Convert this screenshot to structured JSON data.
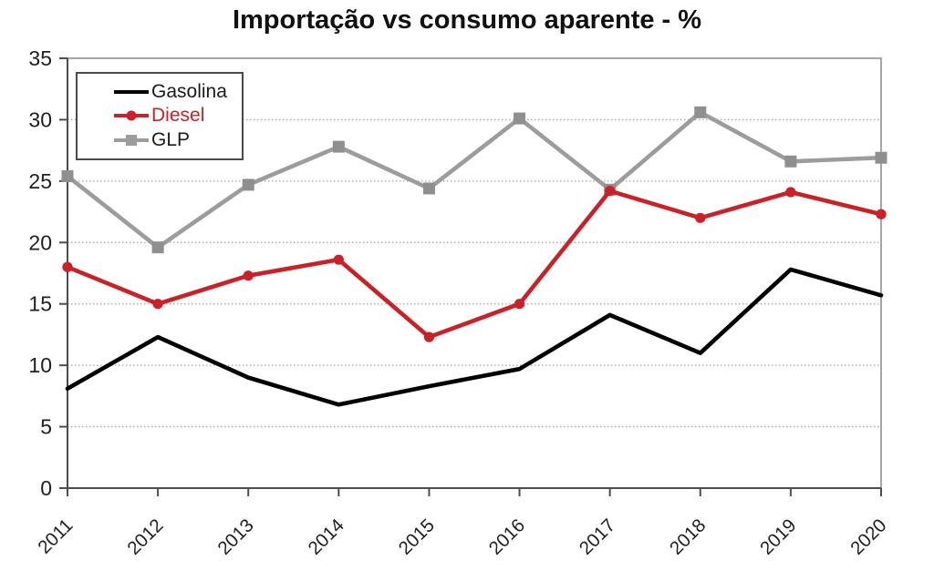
{
  "title": "Importação vs consumo aparente - %",
  "chart_data": {
    "type": "line",
    "title": "Importação vs consumo aparente - %",
    "categories": [
      "2011",
      "2012",
      "2013",
      "2014",
      "2015",
      "2016",
      "2017",
      "2018",
      "2019",
      "2020"
    ],
    "series": [
      {
        "name": "Gasolina",
        "color": "#000000",
        "marker": "none",
        "values": [
          8.1,
          12.3,
          9.0,
          6.8,
          8.3,
          9.7,
          14.1,
          11.0,
          17.8,
          15.7
        ]
      },
      {
        "name": "Diesel",
        "color": "#cb2026",
        "marker": "circle",
        "values": [
          18.0,
          15.0,
          17.3,
          18.6,
          12.3,
          15.0,
          24.2,
          22.0,
          24.1,
          22.3
        ]
      },
      {
        "name": "GLP",
        "color": "#9c9c9c",
        "marker": "square",
        "marker_color": "#8f8f8f",
        "values": [
          25.4,
          19.6,
          24.7,
          27.8,
          24.4,
          30.1,
          24.3,
          30.6,
          26.6,
          26.9
        ]
      }
    ],
    "draw_order": [
      2,
      0,
      1
    ],
    "xlabel": "",
    "ylabel": "",
    "ylim": [
      0,
      35
    ],
    "ytick_step": 5,
    "yticks": [
      "0",
      "5",
      "10",
      "15",
      "20",
      "25",
      "30",
      "35"
    ],
    "grid": "horizontal-dotted",
    "legend_position": "top-left",
    "x_tick_rotation_deg": 45
  },
  "legend": {
    "items": [
      {
        "label": "Gasolina",
        "swatch": "line",
        "line_color": "#000000",
        "label_color": "#1a1a1a"
      },
      {
        "label": "Diesel",
        "swatch": "line-circle",
        "line_color": "#cb2026",
        "label_color": "#cb2026"
      },
      {
        "label": "GLP",
        "swatch": "line-square",
        "line_color": "#9c9c9c",
        "label_color": "#1a1a1a"
      }
    ]
  },
  "colors": {
    "background": "#ffffff",
    "title_text": "#111111",
    "axis_line": "#4d4d4d",
    "plot_border": "#8f8f8f",
    "gridline": "#a6a6a6",
    "tick_label": "#1f1f1f",
    "series_gasolina": "#000000",
    "series_diesel": "#cb2026",
    "series_glp": "#9c9c9c"
  }
}
